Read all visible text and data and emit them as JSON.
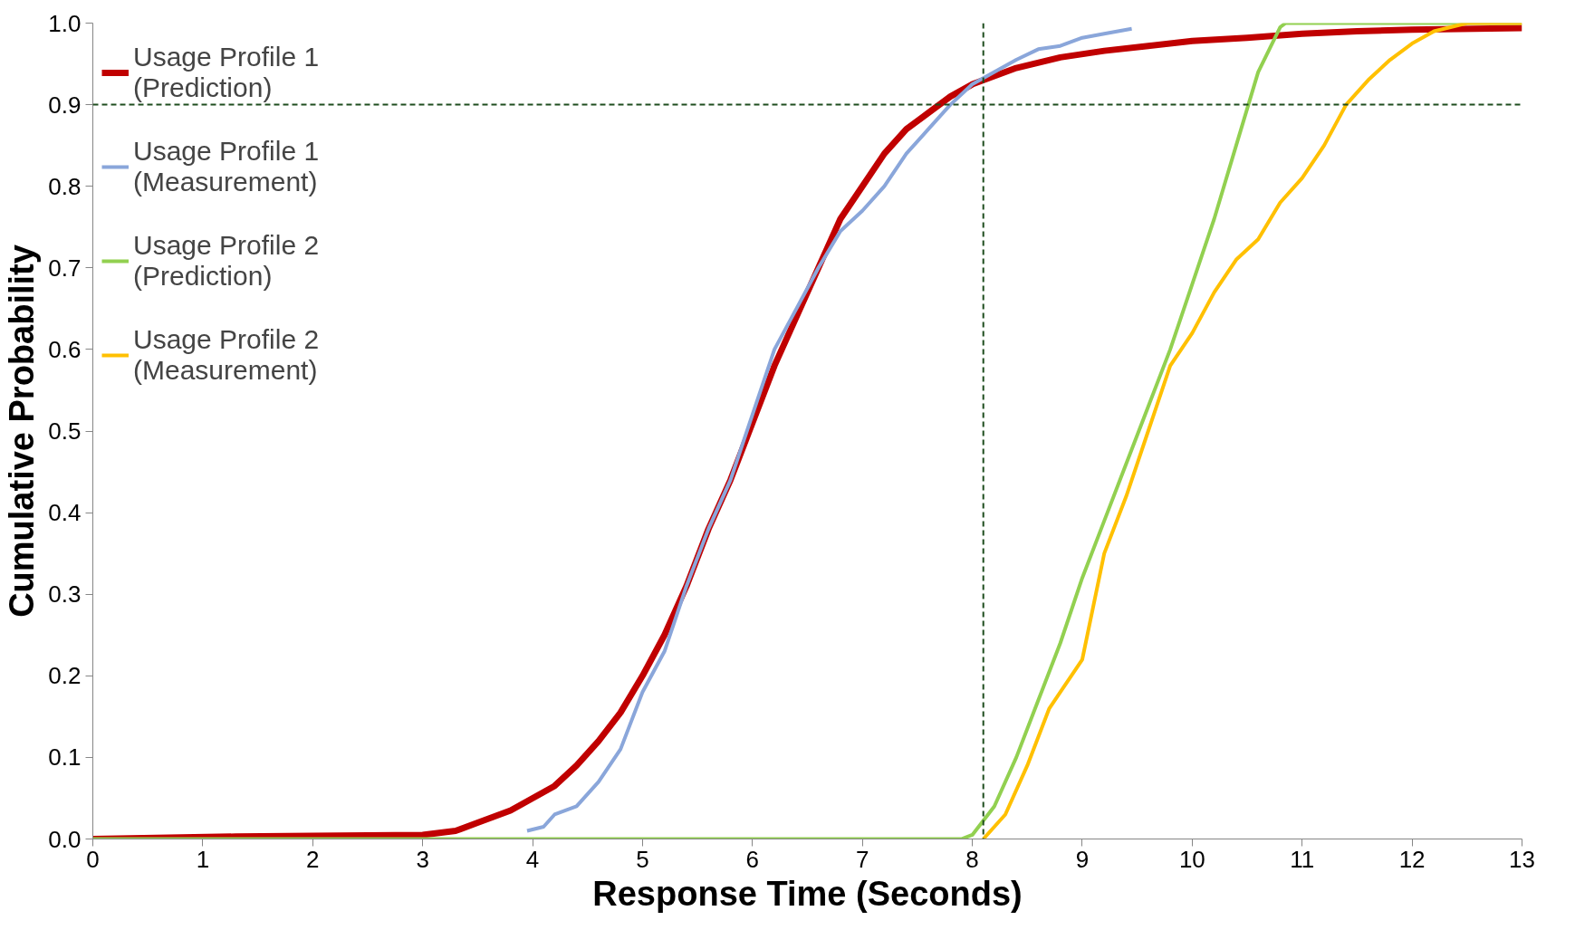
{
  "chart_data": {
    "type": "line",
    "xlabel": "Response Time (Seconds)",
    "ylabel": "Cumulative Probability",
    "xlim": [
      0,
      13
    ],
    "ylim": [
      0,
      1
    ],
    "xticks": [
      0,
      1,
      2,
      3,
      4,
      5,
      6,
      7,
      8,
      9,
      10,
      11,
      12,
      13
    ],
    "yticks": [
      {
        "value": 0,
        "label": "0.0"
      },
      0.1,
      0.2,
      0.3,
      0.4,
      0.5,
      0.6,
      0.7,
      0.8,
      0.9,
      {
        "value": 1,
        "label": "1.0"
      }
    ],
    "grid": false,
    "legend": "top left",
    "marker": "none",
    "line_style": "solid",
    "ref_lines": [
      {
        "axis": "x",
        "value": 8.1,
        "color": "#1e4d1e",
        "line_style": "dashed"
      },
      {
        "axis": "y",
        "value": 0.9,
        "color": "#1e4d1e",
        "line_style": "dashed"
      }
    ],
    "series": [
      {
        "name": "Usage Profile 1\n(Prediction)",
        "color": "#c00000",
        "x": [
          0,
          1.3,
          2,
          3,
          3.3,
          3.5,
          3.8,
          4,
          4.2,
          4.4,
          4.6,
          4.8,
          5,
          5.2,
          5.4,
          5.6,
          5.8,
          6,
          6.2,
          6.4,
          6.6,
          6.8,
          7,
          7.2,
          7.4,
          7.6,
          7.8,
          8,
          8.4,
          8.8,
          9.2,
          9.6,
          10,
          10.5,
          11,
          11.5,
          12,
          13
        ],
        "values": [
          0,
          0.003,
          0.004,
          0.005,
          0.01,
          0.02,
          0.035,
          0.05,
          0.065,
          0.09,
          0.12,
          0.155,
          0.2,
          0.25,
          0.31,
          0.38,
          0.44,
          0.51,
          0.58,
          0.64,
          0.7,
          0.76,
          0.8,
          0.84,
          0.87,
          0.89,
          0.91,
          0.925,
          0.945,
          0.958,
          0.966,
          0.972,
          0.978,
          0.982,
          0.987,
          0.99,
          0.992,
          0.994
        ]
      },
      {
        "name": "Usage Profile 1\n(Measurement)",
        "color": "#8aa6da",
        "x": [
          3.95,
          4.1,
          4.2,
          4.4,
          4.6,
          4.8,
          5,
          5.2,
          5.4,
          5.6,
          5.8,
          6,
          6.2,
          6.4,
          6.6,
          6.8,
          7,
          7.2,
          7.4,
          7.6,
          7.8,
          8,
          8.2,
          8.4,
          8.6,
          8.8,
          9,
          9.2,
          9.45
        ],
        "values": [
          0.01,
          0.015,
          0.03,
          0.04,
          0.07,
          0.11,
          0.18,
          0.23,
          0.31,
          0.38,
          0.44,
          0.52,
          0.6,
          0.65,
          0.7,
          0.745,
          0.77,
          0.8,
          0.84,
          0.87,
          0.9,
          0.925,
          0.94,
          0.955,
          0.968,
          0.972,
          0.982,
          0.987,
          0.993
        ]
      },
      {
        "name": "Usage Profile 2\n(Prediction)",
        "color": "#92d050",
        "x": [
          0,
          7.9,
          8,
          8.2,
          8.4,
          8.6,
          8.8,
          9,
          9.2,
          9.4,
          9.6,
          9.8,
          10,
          10.2,
          10.4,
          10.6,
          10.8,
          10.85,
          13
        ],
        "values": [
          0,
          0,
          0.005,
          0.04,
          0.1,
          0.17,
          0.24,
          0.32,
          0.39,
          0.46,
          0.53,
          0.6,
          0.68,
          0.76,
          0.85,
          0.94,
          0.995,
          1,
          1
        ]
      },
      {
        "name": "Usage Profile 2\n(Measurement)",
        "color": "#ffc000",
        "x": [
          8.1,
          8.3,
          8.5,
          8.7,
          8.9,
          9,
          9.2,
          9.4,
          9.6,
          9.8,
          10,
          10.2,
          10.4,
          10.6,
          10.8,
          11,
          11.2,
          11.4,
          11.6,
          11.8,
          12,
          12.2,
          12.5,
          13
        ],
        "values": [
          0,
          0.03,
          0.09,
          0.16,
          0.2,
          0.22,
          0.35,
          0.42,
          0.5,
          0.58,
          0.62,
          0.67,
          0.71,
          0.735,
          0.78,
          0.81,
          0.85,
          0.9,
          0.93,
          0.955,
          0.975,
          0.99,
          1,
          1
        ]
      }
    ]
  }
}
